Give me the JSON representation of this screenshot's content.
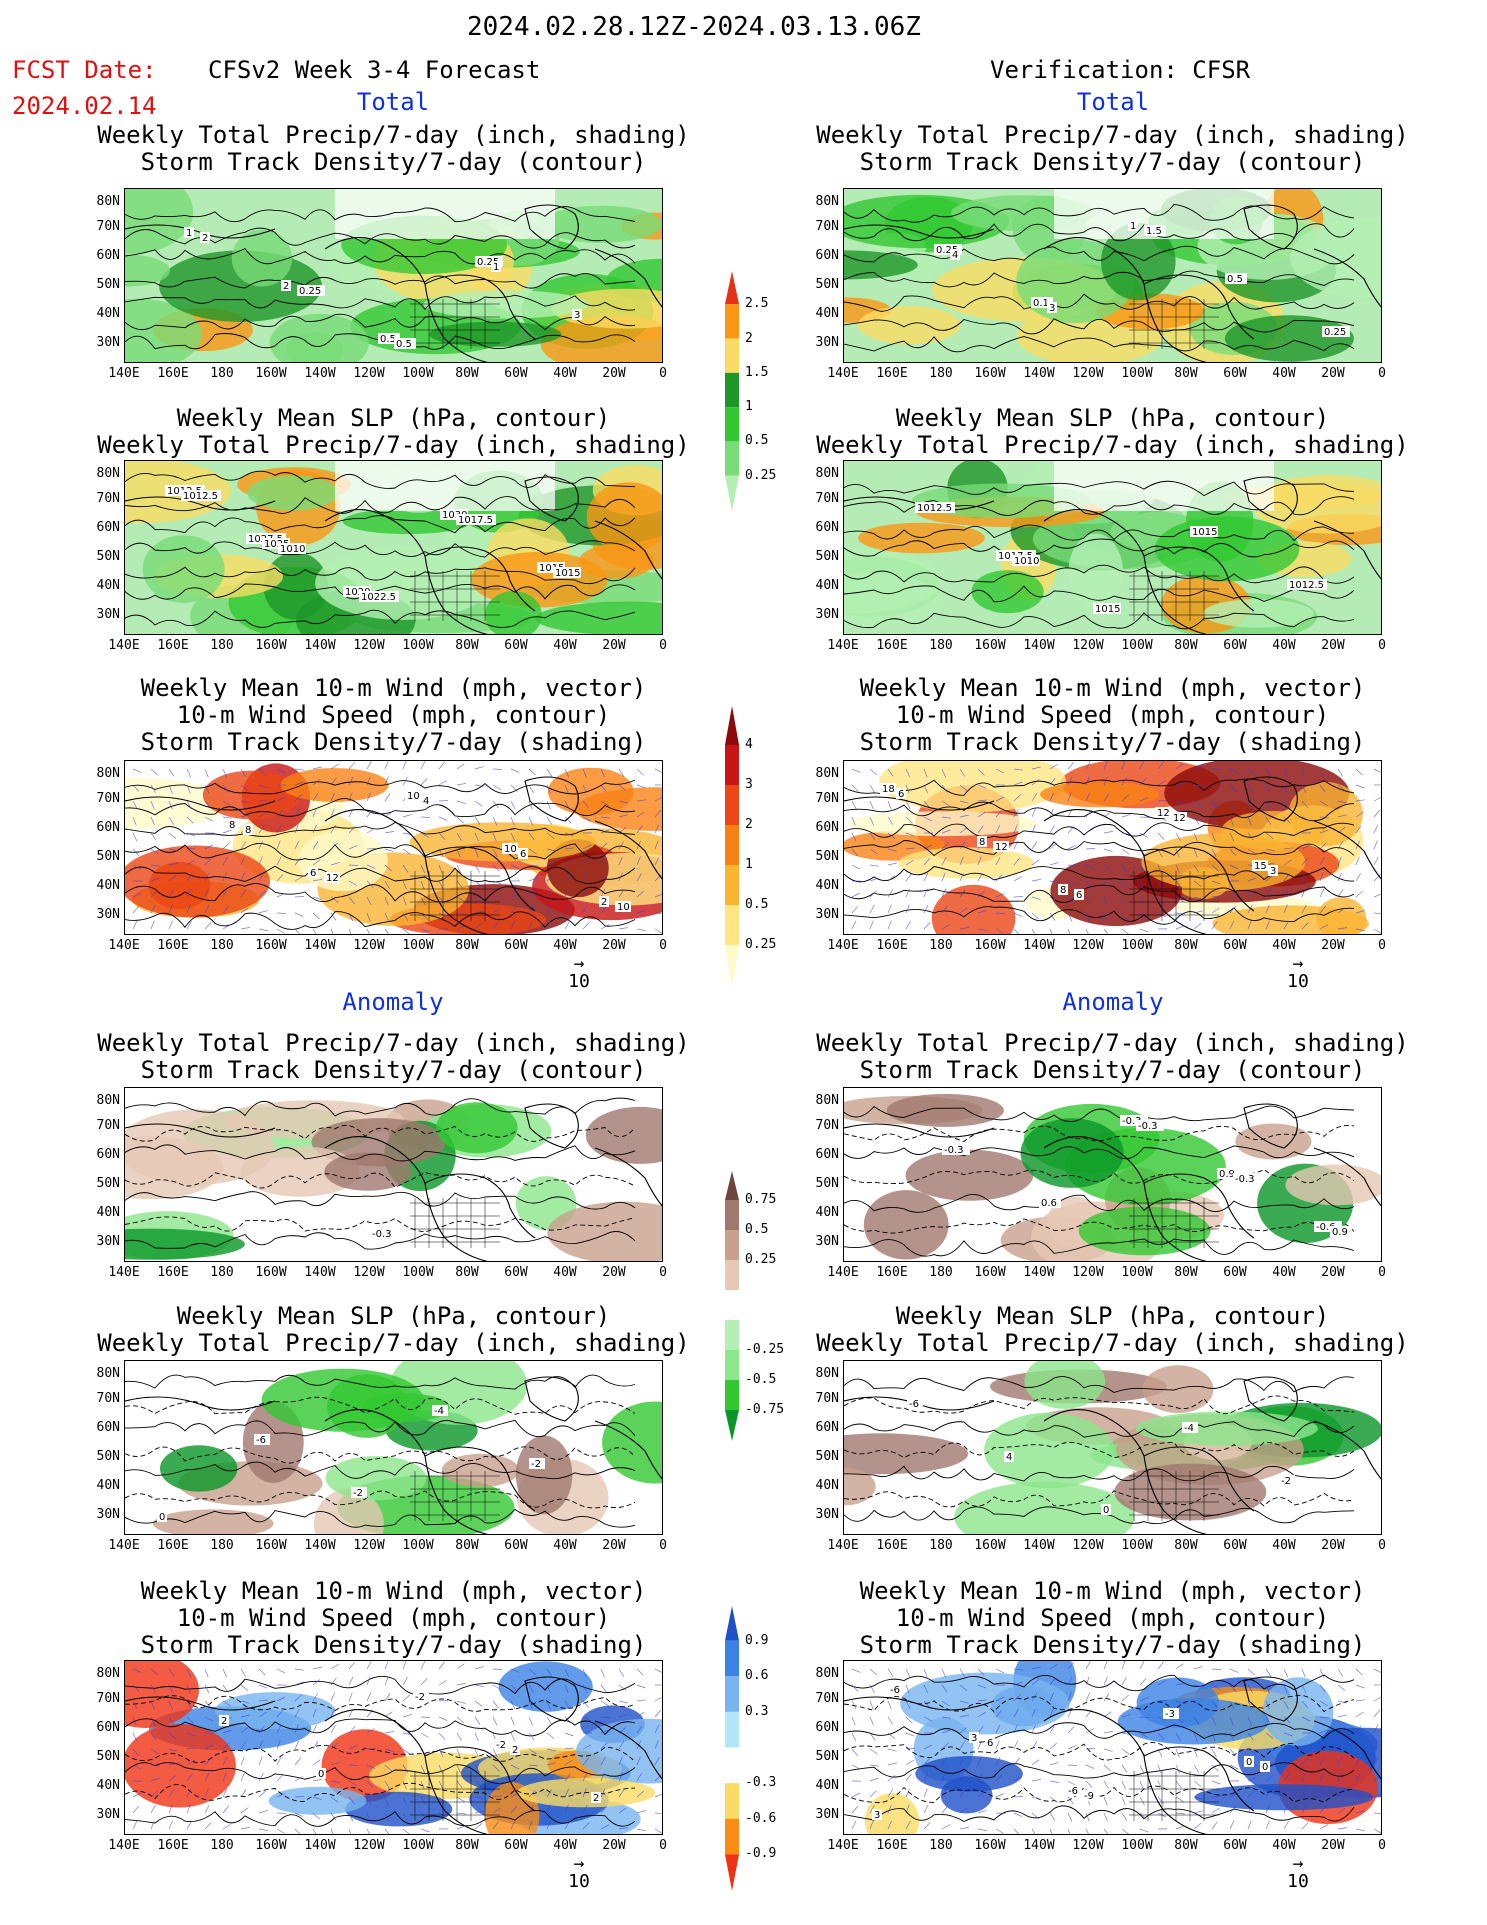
{
  "header": {
    "date_range": "2024.02.28.12Z-2024.03.13.06Z",
    "fcst_label": "FCST Date:",
    "fcst_date": "2024.02.14",
    "left_title": "CFSv2 Week 3-4 Forecast",
    "right_title": "Verification: CFSR"
  },
  "sections": {
    "total": "Total",
    "anomaly": "Anomaly"
  },
  "panel_titles": {
    "precip_storm": [
      "Weekly Total Precip/7-day (inch, shading)",
      "Storm Track Density/7-day (contour)"
    ],
    "slp_precip": [
      "Weekly Mean SLP (hPa, contour)",
      "Weekly Total Precip/7-day (inch, shading)"
    ],
    "wind_storm": [
      "Weekly Mean 10-m Wind (mph, vector)",
      "10-m Wind Speed (mph, contour)",
      "Storm Track Density/7-day (shading)"
    ]
  },
  "axes": {
    "lat_ticks": [
      "80N",
      "70N",
      "60N",
      "50N",
      "40N",
      "30N"
    ],
    "lon_ticks": [
      "140E",
      "160E",
      "180",
      "160W",
      "140W",
      "120W",
      "100W",
      "80W",
      "60W",
      "40W",
      "20W",
      "0"
    ]
  },
  "vector_ref": "10",
  "colorbars": {
    "precip_total": {
      "labels": [
        "0.25",
        "0.5",
        "1",
        "1.5",
        "2",
        "2.5"
      ],
      "colors": [
        "#b4f0b4",
        "#78dc78",
        "#32c832",
        "#1e9628",
        "#fadc64",
        "#fa9614",
        "#e63214"
      ]
    },
    "storm_total": {
      "labels": [
        "0.25",
        "0.5",
        "1",
        "2",
        "3",
        "4"
      ],
      "colors": [
        "#fffac8",
        "#ffe682",
        "#fab432",
        "#fa8214",
        "#eb4614",
        "#c81414",
        "#8c0a0a"
      ]
    },
    "precip_anom": {
      "labels": [
        "0.75",
        "0.5",
        "0.25",
        "-0.25",
        "-0.5",
        "-0.75"
      ],
      "colors": [
        "#0a9628",
        "#32c832",
        "#8ce68c",
        "#b4f0b4",
        "#ffffff",
        "#e6c8b4",
        "#c8a08c",
        "#a0786e",
        "#6e4640"
      ]
    },
    "storm_anom": {
      "labels": [
        "0.9",
        "0.6",
        "0.3",
        "-0.3",
        "-0.6",
        "-0.9"
      ],
      "colors": [
        "#f03214",
        "#fa8c14",
        "#fadc64",
        "#ffffff",
        "#b4e6fa",
        "#78b4f0",
        "#3c82e6",
        "#1e50c8"
      ]
    }
  },
  "contour_labels": {
    "p1": [
      "1",
      "2",
      "0.5",
      "0.25",
      "3",
      "2",
      "0.25",
      "0.5",
      "1"
    ],
    "p2": [
      "0.25",
      "0.1",
      "1",
      "0.5",
      "0.25",
      "4",
      "3",
      "1.5"
    ],
    "p3": [
      "1027.5",
      "1020",
      "1030",
      "1015",
      "1012.5",
      "1025",
      "1022.5",
      "1017.5",
      "1015",
      "1012.5",
      "1010"
    ],
    "p4": [
      "1017.5",
      "1015",
      "1015",
      "1012.5",
      "1012.5",
      "1010"
    ],
    "p5": [
      "6",
      "10",
      "10",
      "2",
      "8",
      "12",
      "4",
      "6",
      "10",
      "8"
    ],
    "p6": [
      "8",
      "12",
      "15",
      "18",
      "8",
      "6",
      "12",
      "3",
      "6",
      "12"
    ],
    "p7": [
      "-0.3"
    ],
    "p8": [
      "-0.3",
      "0.9",
      "-0.6",
      "-0.3",
      "0.6",
      "-0.3",
      "-0.3",
      "0.9"
    ],
    "p9": [
      "-4",
      "-2",
      "0",
      "-6",
      "-2"
    ],
    "p10": [
      "-4",
      "-2",
      "-6",
      "4",
      "0"
    ],
    "p11": [
      "-2",
      "2",
      "2",
      "0",
      "-2",
      "2"
    ],
    "p12": [
      "0",
      "3",
      "3",
      "-6",
      "-3",
      "0",
      "-6",
      "6",
      "-9"
    ]
  }
}
